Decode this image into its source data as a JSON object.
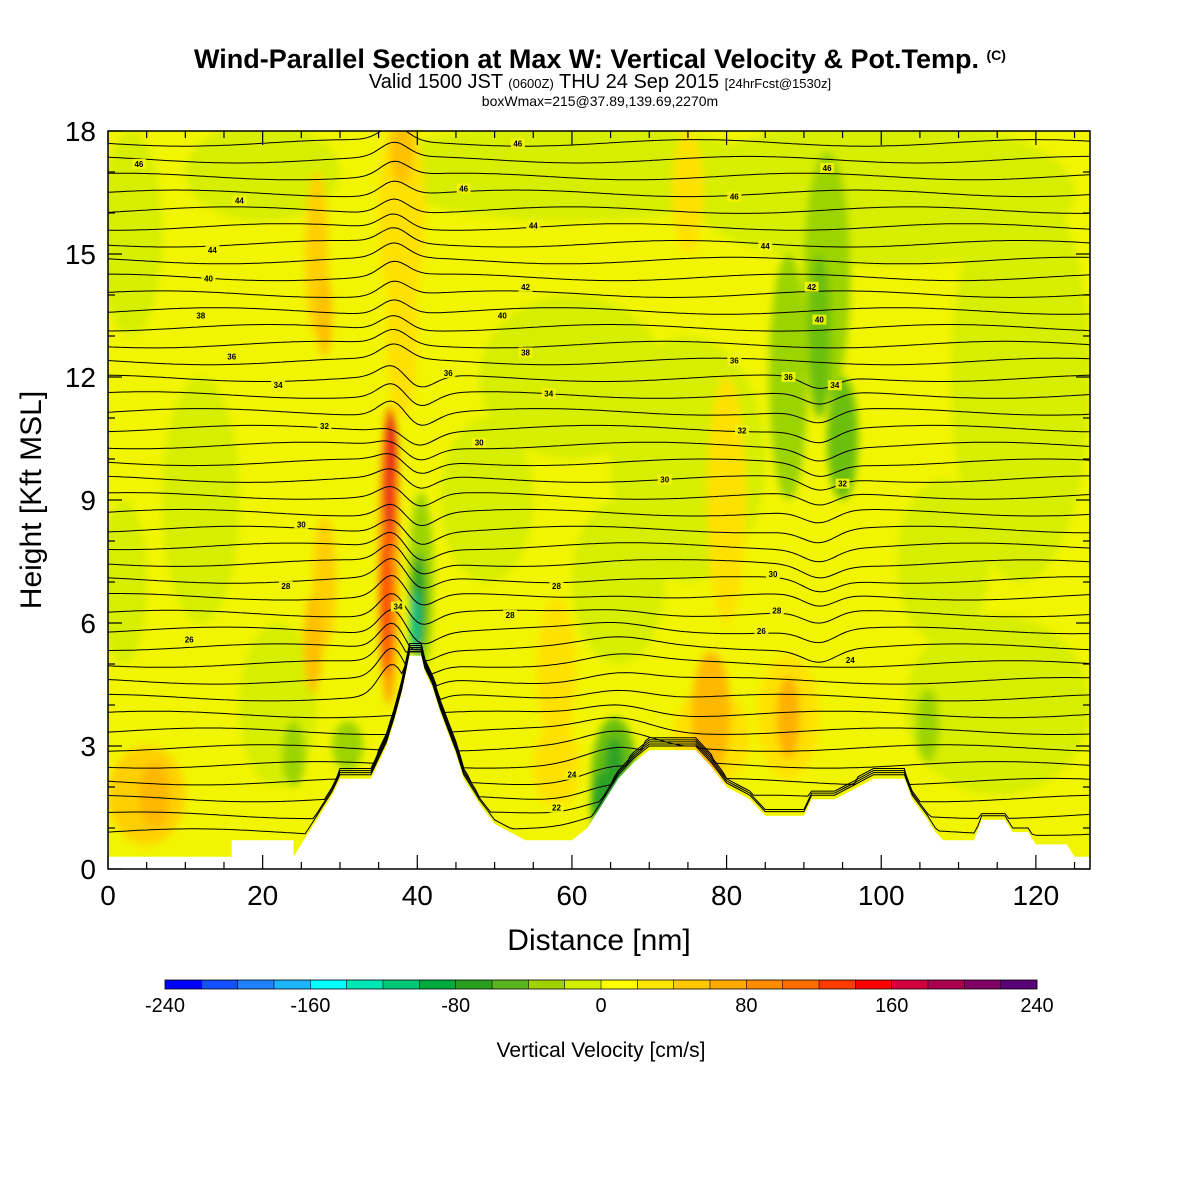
{
  "header": {
    "title": "Wind-Parallel Section at Max W: Vertical Velocity & Pot.Temp.",
    "copyright": "(C)",
    "valid_prefix": "Valid 1500 JST",
    "valid_utc": "(0600Z)",
    "valid_date": "THU 24 Sep 2015",
    "forecast": "[24hrFcst@1530z]",
    "box_info": "boxWmax=215@37.89,139.69,2270m"
  },
  "chart_data": {
    "type": "heatmap",
    "xlabel": "Distance [nm]",
    "ylabel": "Height [Kft MSL]",
    "xlim": [
      0,
      127
    ],
    "ylim": [
      0,
      18
    ],
    "x_ticks": [
      "0",
      "20",
      "40",
      "60",
      "80",
      "100",
      "120"
    ],
    "y_ticks": [
      "0",
      "3",
      "6",
      "9",
      "12",
      "15",
      "18"
    ],
    "colorbar": {
      "label": "Vertical Velocity [cm/s]",
      "range": [
        -240,
        240
      ],
      "tick_labels": [
        "-240",
        "-160",
        "-80",
        "0",
        "80",
        "160",
        "240"
      ],
      "colors": [
        "#0000ff",
        "#1450ff",
        "#1e82ff",
        "#1eb4ff",
        "#00ffff",
        "#00e6b4",
        "#00c878",
        "#00aa3c",
        "#28a01e",
        "#5ab41e",
        "#a0d200",
        "#d2f000",
        "#ffff00",
        "#ffe600",
        "#ffc800",
        "#ffaa00",
        "#ff8c00",
        "#ff6e00",
        "#ff3c00",
        "#ff0000",
        "#d2003c",
        "#aa0050",
        "#820064",
        "#5a0078"
      ]
    },
    "terrain_profile": [
      [
        0,
        0.3
      ],
      [
        16,
        0.3
      ],
      [
        16,
        0.7
      ],
      [
        24,
        0.7
      ],
      [
        24,
        0.3
      ],
      [
        25,
        0.6
      ],
      [
        27,
        1.2
      ],
      [
        29,
        1.8
      ],
      [
        30,
        2.2
      ],
      [
        34,
        2.2
      ],
      [
        35,
        2.6
      ],
      [
        36,
        3.0
      ],
      [
        37,
        3.6
      ],
      [
        38,
        4.3
      ],
      [
        39,
        5.2
      ],
      [
        40.5,
        5.2
      ],
      [
        41,
        4.8
      ],
      [
        42,
        4.4
      ],
      [
        43,
        3.8
      ],
      [
        44,
        3.3
      ],
      [
        45,
        2.8
      ],
      [
        46,
        2.2
      ],
      [
        48,
        1.6
      ],
      [
        50,
        1.1
      ],
      [
        52,
        0.9
      ],
      [
        54,
        0.7
      ],
      [
        60,
        0.7
      ],
      [
        62,
        1.0
      ],
      [
        64,
        1.6
      ],
      [
        66,
        2.2
      ],
      [
        68,
        2.6
      ],
      [
        70,
        2.9
      ],
      [
        76,
        2.9
      ],
      [
        78,
        2.5
      ],
      [
        80,
        2.0
      ],
      [
        83,
        1.7
      ],
      [
        85,
        1.3
      ],
      [
        90,
        1.3
      ],
      [
        91,
        1.7
      ],
      [
        94,
        1.7
      ],
      [
        96,
        1.9
      ],
      [
        99,
        2.2
      ],
      [
        103,
        2.2
      ],
      [
        104,
        1.7
      ],
      [
        106,
        1.2
      ],
      [
        107,
        0.9
      ],
      [
        108,
        0.7
      ],
      [
        112,
        0.7
      ],
      [
        113,
        1.2
      ],
      [
        116,
        1.2
      ],
      [
        117,
        0.9
      ],
      [
        119,
        0.9
      ],
      [
        120,
        0.6
      ],
      [
        124,
        0.6
      ],
      [
        125,
        0.3
      ],
      [
        127,
        0.3
      ]
    ],
    "contour_labels": [
      {
        "x": 4,
        "y": 17.2,
        "text": "46"
      },
      {
        "x": 53,
        "y": 17.7,
        "text": "46"
      },
      {
        "x": 93,
        "y": 17.1,
        "text": "46"
      },
      {
        "x": 17,
        "y": 16.3,
        "text": "44"
      },
      {
        "x": 46,
        "y": 16.6,
        "text": "46"
      },
      {
        "x": 81,
        "y": 16.4,
        "text": "46"
      },
      {
        "x": 13.5,
        "y": 15.1,
        "text": "44"
      },
      {
        "x": 55,
        "y": 15.7,
        "text": "44"
      },
      {
        "x": 85,
        "y": 15.2,
        "text": "44"
      },
      {
        "x": 13,
        "y": 14.4,
        "text": "40"
      },
      {
        "x": 54,
        "y": 14.2,
        "text": "42"
      },
      {
        "x": 91,
        "y": 14.2,
        "text": "42"
      },
      {
        "x": 12,
        "y": 13.5,
        "text": "38"
      },
      {
        "x": 51,
        "y": 13.5,
        "text": "40"
      },
      {
        "x": 92,
        "y": 13.4,
        "text": "40"
      },
      {
        "x": 16,
        "y": 12.5,
        "text": "36"
      },
      {
        "x": 54,
        "y": 12.6,
        "text": "38"
      },
      {
        "x": 81,
        "y": 12.4,
        "text": "36"
      },
      {
        "x": 22,
        "y": 11.8,
        "text": "34"
      },
      {
        "x": 44,
        "y": 12.1,
        "text": "36"
      },
      {
        "x": 57,
        "y": 11.6,
        "text": "34"
      },
      {
        "x": 88,
        "y": 12.0,
        "text": "36"
      },
      {
        "x": 94,
        "y": 11.8,
        "text": "34"
      },
      {
        "x": 28,
        "y": 10.8,
        "text": "32"
      },
      {
        "x": 48,
        "y": 10.4,
        "text": "30"
      },
      {
        "x": 82,
        "y": 10.7,
        "text": "32"
      },
      {
        "x": 72,
        "y": 9.5,
        "text": "30"
      },
      {
        "x": 95,
        "y": 9.4,
        "text": "32"
      },
      {
        "x": 25,
        "y": 8.4,
        "text": "30"
      },
      {
        "x": 23,
        "y": 6.9,
        "text": "28"
      },
      {
        "x": 58,
        "y": 6.9,
        "text": "28"
      },
      {
        "x": 86,
        "y": 7.2,
        "text": "30"
      },
      {
        "x": 37.5,
        "y": 6.4,
        "text": "34"
      },
      {
        "x": 52,
        "y": 6.2,
        "text": "28"
      },
      {
        "x": 86.5,
        "y": 6.3,
        "text": "28"
      },
      {
        "x": 84.5,
        "y": 5.8,
        "text": "26"
      },
      {
        "x": 10.5,
        "y": 5.6,
        "text": "26"
      },
      {
        "x": 96,
        "y": 5.1,
        "text": "24"
      },
      {
        "x": 60,
        "y": 2.3,
        "text": "24"
      },
      {
        "x": 58,
        "y": 1.5,
        "text": "22"
      }
    ]
  }
}
